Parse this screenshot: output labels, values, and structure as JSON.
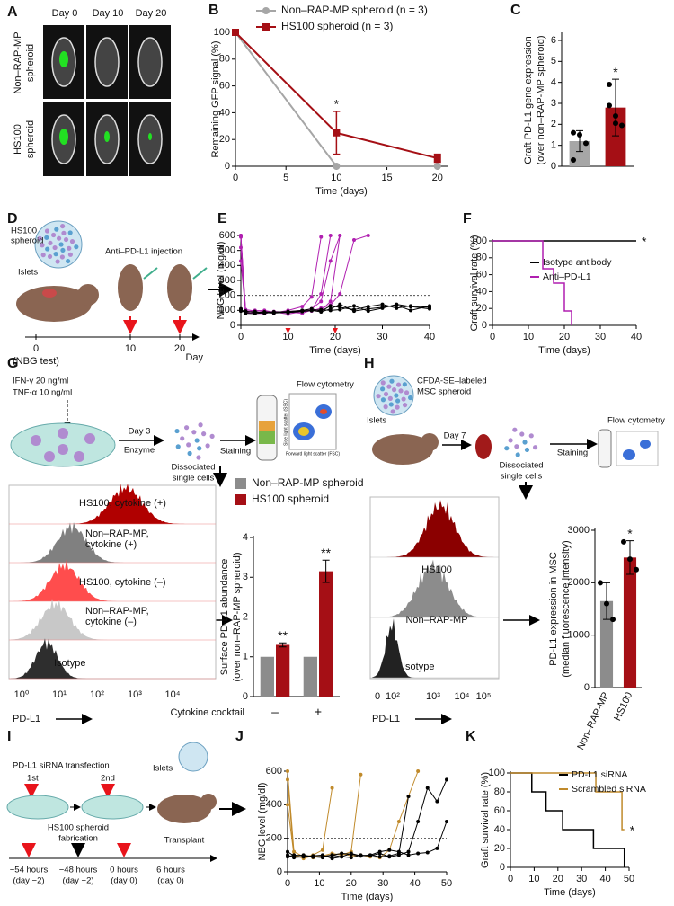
{
  "figure": {
    "panel_labels": [
      "A",
      "B",
      "C",
      "D",
      "E",
      "F",
      "G",
      "H",
      "I",
      "J",
      "K"
    ],
    "a": {
      "columns": [
        "Day 0",
        "Day 10",
        "Day 20"
      ],
      "rows": [
        [
          "Non–RAP-MP",
          "spheroid"
        ],
        [
          "HS100",
          "spheroid"
        ]
      ]
    },
    "d": {
      "spheroid": [
        "HS100",
        "spheroid"
      ],
      "islets": "Islets",
      "injection": "Anti–PD-L1 injection",
      "timeline": [
        "0",
        "10",
        "20"
      ],
      "note": "(NBG test)",
      "unit": "Day"
    },
    "g": {
      "cytokines": [
        "IFN-γ 20 ng/ml",
        "TNF-α 10 ng/ml"
      ],
      "day": "Day 3",
      "enzyme": "Enzyme",
      "cells": [
        "Dissociated",
        "single cells"
      ],
      "staining": "Staining",
      "method": "Flow cytometry",
      "scatter_axes": [
        "Side light scatter (SSC)",
        "Forward light scatter (FSC)"
      ],
      "histograms": [
        [
          "HS100, cytokine (+)"
        ],
        [
          "Non–RAP-MP,",
          "cytokine (+)"
        ],
        [
          "HS100, cytokine (–)"
        ],
        [
          "Non–RAP-MP,",
          "cytokine (–)"
        ],
        [
          "Isotype"
        ]
      ],
      "axis_ticks": [
        "10⁰",
        "10¹",
        "10²",
        "10³",
        "10⁴"
      ],
      "axis_label": "PD-L1"
    },
    "h": {
      "label": [
        "CFDA-SE–labeled",
        "MSC spheroid"
      ],
      "islets": "Islets",
      "day": "Day 7",
      "cells": [
        "Dissociated",
        "single cells"
      ],
      "staining": "Staining",
      "method": "Flow cytometry",
      "histograms": [
        "HS100",
        "Non–RAP-MP",
        "Isotype"
      ],
      "axis_ticks": [
        "0",
        "10²",
        "10³",
        "10⁴",
        "10⁵"
      ],
      "axis_label": "PD-L1"
    },
    "i": {
      "title": "PD-L1 siRNA transfection",
      "steps": [
        "1st",
        "2nd"
      ],
      "fabrication": [
        "HS100 spheroid",
        "fabrication"
      ],
      "islets": "Islets",
      "transplant": "Transplant",
      "times": [
        [
          "−54 hours",
          "(day −2)"
        ],
        [
          "−48 hours",
          "(day −2)"
        ],
        [
          "0 hours",
          "(day 0)"
        ],
        [
          "6 hours",
          "(day 0)"
        ]
      ]
    }
  },
  "chart_data": [
    {
      "type": "line",
      "x": [
        0,
        10,
        20
      ],
      "xlim": [
        0,
        21
      ],
      "xticks": [
        0,
        5,
        10,
        15,
        20
      ],
      "ylim": [
        0,
        100
      ],
      "yticks": [
        0,
        20,
        40,
        60,
        80,
        100
      ],
      "xlabel": "Time (days)",
      "ylabel": "Remaining GFP signal (%)",
      "legend": "top",
      "series": [
        {
          "name": "Non–RAP-MP spheroid (n = 3)",
          "color": "#a6a6a6",
          "marker": "circle",
          "values": [
            100,
            0,
            0
          ]
        },
        {
          "name": "HS100 spheroid (n = 3)",
          "color": "#a50f15",
          "marker": "square",
          "values": [
            100,
            25,
            6
          ],
          "errors": [
            0,
            16,
            3
          ]
        }
      ],
      "annotations": [
        {
          "series": 1,
          "index": 1,
          "text": "*"
        }
      ]
    },
    {
      "type": "bar",
      "categories": [
        null,
        null
      ],
      "values": [
        1.2,
        2.8
      ],
      "errors": [
        0.5,
        1.35
      ],
      "colors": [
        "#a6a6a6",
        "#a50f15"
      ],
      "points": [
        [
          1.6,
          1.5,
          1.1,
          0.3
        ],
        [
          3.9,
          2.4,
          1.95,
          2.9,
          2.05
        ]
      ],
      "ylim": [
        0,
        6.3
      ],
      "yticks": [
        0,
        1,
        2,
        3,
        4,
        5,
        6
      ],
      "ylabel": [
        "Graft PD-L1 gene expression",
        "(over non–RAP-MP spheroid)"
      ],
      "annotations": [
        {
          "index": 1,
          "text": "*"
        }
      ]
    },
    {
      "type": "line",
      "x": [
        0,
        1,
        3,
        5,
        7,
        10,
        13,
        15,
        17,
        19,
        21,
        24,
        27,
        30,
        33,
        36,
        40
      ],
      "xlim": [
        0,
        40
      ],
      "xticks": [
        0,
        10,
        20,
        30,
        40
      ],
      "ylim": [
        0,
        600
      ],
      "yticks": [
        0,
        100,
        200,
        300,
        400,
        500,
        600
      ],
      "xlabel": "Time (days)",
      "ylabel": "NBG level (mg/dl)",
      "reference": 200,
      "arrows": [
        10,
        20
      ],
      "arrow_color": "#e8141b",
      "series": [
        {
          "color": "#b01fb0",
          "marker": "circle",
          "values": [
            590,
            95,
            88,
            80,
            90,
            75,
            92,
            100,
            210,
            600,
            null,
            null,
            null,
            null,
            null,
            null,
            null
          ]
        },
        {
          "color": "#b01fb0",
          "marker": "circle",
          "values": [
            600,
            85,
            80,
            78,
            92,
            88,
            97,
            110,
            160,
            430,
            600,
            null,
            null,
            null,
            null,
            null,
            null
          ]
        },
        {
          "color": "#b01fb0",
          "marker": "circle",
          "values": [
            430,
            98,
            85,
            92,
            82,
            100,
            125,
            190,
            590,
            null,
            null,
            null,
            null,
            null,
            null,
            null,
            null
          ]
        },
        {
          "color": "#b01fb0",
          "marker": "circle",
          "values": [
            600,
            105,
            96,
            100,
            88,
            92,
            100,
            96,
            115,
            135,
            210,
            570,
            600,
            null,
            null,
            null,
            null
          ]
        },
        {
          "color": "#b01fb0",
          "marker": "circle",
          "values": [
            520,
            90,
            100,
            95,
            85,
            90,
            80,
            102,
            98,
            160,
            600,
            null,
            null,
            null,
            null,
            null,
            null
          ]
        },
        {
          "color": "#000000",
          "marker": "circle",
          "values": [
            100,
            95,
            85,
            90,
            88,
            92,
            100,
            110,
            95,
            130,
            120,
            105,
            125,
            140,
            115,
            130,
            120
          ]
        },
        {
          "color": "#000000",
          "marker": "circle",
          "values": [
            110,
            80,
            78,
            85,
            82,
            88,
            96,
            100,
            90,
            110,
            140,
            95,
            110,
            120,
            135,
            100,
            130
          ]
        },
        {
          "color": "#000000",
          "marker": "circle",
          "values": [
            95,
            88,
            92,
            80,
            90,
            85,
            92,
            98,
            105,
            100,
            105,
            130,
            95,
            115,
            140,
            125,
            110
          ]
        }
      ]
    },
    {
      "type": "step",
      "xlim": [
        0,
        40
      ],
      "xticks": [
        0,
        10,
        20,
        30,
        40
      ],
      "ylim": [
        0,
        100
      ],
      "yticks": [
        0,
        20,
        40,
        60,
        80,
        100
      ],
      "xlabel": "Time (days)",
      "ylabel": "Graft survival rate (%)",
      "legend": "center right",
      "series": [
        {
          "name": "Isotype antibody",
          "color": "#000000",
          "x": [
            0,
            40
          ],
          "values": [
            100,
            100
          ]
        },
        {
          "name": "Anti–PD-L1",
          "color": "#b01fb0",
          "x": [
            0,
            14,
            17,
            20,
            22
          ],
          "values": [
            100,
            67,
            50,
            17,
            0
          ]
        }
      ],
      "annotations": [
        {
          "series": 0,
          "index": 1,
          "text": "*"
        }
      ]
    },
    {
      "type": "bar",
      "categories": [
        "–",
        "+"
      ],
      "xlabel": "Cytokine cocktail",
      "ylim": [
        0,
        4
      ],
      "yticks": [
        0,
        1,
        2,
        3,
        4
      ],
      "ylabel": [
        "Surface PD-L1 abundance",
        "(over non–RAP-MP spheroid)"
      ],
      "legend": "top",
      "series": [
        {
          "name": "Non–RAP-MP spheroid",
          "color": "#8c8c8c",
          "values": [
            1,
            1
          ]
        },
        {
          "name": "HS100 spheroid",
          "color": "#a50f15",
          "values": [
            1.3,
            3.15
          ],
          "errors": [
            0.05,
            0.28
          ]
        }
      ],
      "annotations": [
        {
          "series": 1,
          "index": 0,
          "text": "**"
        },
        {
          "series": 1,
          "index": 1,
          "text": "**"
        }
      ]
    },
    {
      "type": "bar",
      "categories": [
        "Non–RAP-MP",
        "HS100"
      ],
      "values": [
        1650,
        2480
      ],
      "errors": [
        350,
        320
      ],
      "colors": [
        "#8c8c8c",
        "#a50f15"
      ],
      "points": [
        [
          2000,
          1600,
          1300
        ],
        [
          2780,
          2450,
          2250
        ]
      ],
      "ylim": [
        0,
        3000
      ],
      "yticks": [
        0,
        1000,
        2000,
        3000
      ],
      "ylabel": [
        "PD-L1 expression in MSC",
        "(median fluorescence intensity)"
      ],
      "annotations": [
        {
          "index": 1,
          "text": "*"
        }
      ]
    },
    {
      "type": "line",
      "x": [
        0,
        2,
        5,
        8,
        11,
        14,
        17,
        20,
        23,
        26,
        29,
        32,
        35,
        38,
        41,
        44,
        47,
        50
      ],
      "xlim": [
        0,
        50
      ],
      "xticks": [
        0,
        10,
        20,
        30,
        40,
        50
      ],
      "ylim": [
        0,
        600
      ],
      "yticks": [
        0,
        200,
        400,
        600
      ],
      "xlabel": "Time (days)",
      "ylabel": "NBG level (mg/dl)",
      "reference": 200,
      "series": [
        {
          "color": "#c08a2b",
          "marker": "circle",
          "values": [
            600,
            120,
            90,
            100,
            130,
            500,
            null,
            null,
            null,
            null,
            null,
            null,
            null,
            null,
            null,
            null,
            null,
            null
          ]
        },
        {
          "color": "#c08a2b",
          "marker": "circle",
          "values": [
            550,
            90,
            100,
            85,
            95,
            110,
            100,
            120,
            580,
            null,
            null,
            null,
            null,
            null,
            null,
            null,
            null,
            null
          ]
        },
        {
          "color": "#c08a2b",
          "marker": "circle",
          "values": [
            400,
            100,
            80,
            95,
            90,
            100,
            110,
            95,
            100,
            90,
            85,
            130,
            300,
            450,
            600,
            null,
            null,
            null
          ]
        },
        {
          "color": "#000000",
          "marker": "circle",
          "values": [
            120,
            95,
            100,
            90,
            85,
            100,
            90,
            110,
            95,
            100,
            120,
            130,
            120,
            100,
            110,
            115,
            140,
            300
          ]
        },
        {
          "color": "#000000",
          "marker": "circle",
          "values": [
            100,
            85,
            90,
            95,
            100,
            80,
            90,
            85,
            100,
            95,
            110,
            90,
            100,
            120,
            300,
            500,
            420,
            550
          ]
        },
        {
          "color": "#000000",
          "marker": "circle",
          "values": [
            90,
            100,
            95,
            88,
            92,
            100,
            110,
            105,
            95,
            100,
            90,
            95,
            110,
            450,
            null,
            null,
            null,
            null
          ]
        }
      ]
    },
    {
      "type": "step",
      "xlim": [
        0,
        50
      ],
      "xticks": [
        0,
        10,
        20,
        30,
        40,
        50
      ],
      "ylim": [
        0,
        100
      ],
      "yticks": [
        0,
        20,
        40,
        60,
        80,
        100
      ],
      "xlabel": "Time (days)",
      "ylabel": "Graft survival rate (%)",
      "legend": "upper right",
      "series": [
        {
          "name": "PD-L1 siRNA",
          "color": "#000000",
          "x": [
            0,
            9,
            15,
            22,
            35,
            48
          ],
          "values": [
            100,
            80,
            60,
            40,
            20,
            0
          ]
        },
        {
          "name": "Scrambled siRNA",
          "color": "#c08a2b",
          "x": [
            0,
            36,
            47,
            48
          ],
          "values": [
            100,
            80,
            40,
            40
          ]
        }
      ],
      "annotations": [
        {
          "series": 1,
          "index": 3,
          "text": "*"
        }
      ]
    }
  ]
}
